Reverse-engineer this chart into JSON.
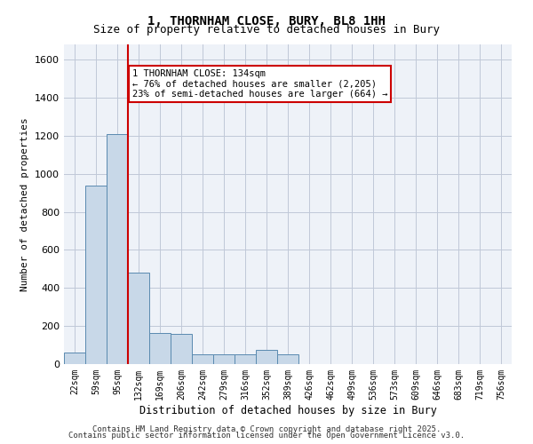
{
  "title_line1": "1, THORNHAM CLOSE, BURY, BL8 1HH",
  "title_line2": "Size of property relative to detached houses in Bury",
  "xlabel": "Distribution of detached houses by size in Bury",
  "ylabel": "Number of detached properties",
  "categories": [
    "22sqm",
    "59sqm",
    "95sqm",
    "132sqm",
    "169sqm",
    "206sqm",
    "242sqm",
    "279sqm",
    "316sqm",
    "352sqm",
    "389sqm",
    "426sqm",
    "462sqm",
    "499sqm",
    "536sqm",
    "573sqm",
    "609sqm",
    "646sqm",
    "683sqm",
    "719sqm",
    "756sqm"
  ],
  "values": [
    60,
    940,
    1210,
    480,
    165,
    160,
    50,
    50,
    50,
    75,
    50,
    0,
    0,
    0,
    0,
    0,
    0,
    0,
    0,
    0,
    0
  ],
  "bar_color": "#c8d8e8",
  "bar_edge_color": "#5a8ab0",
  "grid_color": "#c0c8d8",
  "background_color": "#eef2f8",
  "vline_x_index": 3,
  "vline_color": "#cc0000",
  "annotation_text": "1 THORNHAM CLOSE: 134sqm\n← 76% of detached houses are smaller (2,205)\n23% of semi-detached houses are larger (664) →",
  "annotation_box_color": "#cc0000",
  "ylim": [
    0,
    1680
  ],
  "yticks": [
    0,
    200,
    400,
    600,
    800,
    1000,
    1200,
    1400,
    1600
  ],
  "footer_line1": "Contains HM Land Registry data © Crown copyright and database right 2025.",
  "footer_line2": "Contains public sector information licensed under the Open Government Licence v3.0."
}
